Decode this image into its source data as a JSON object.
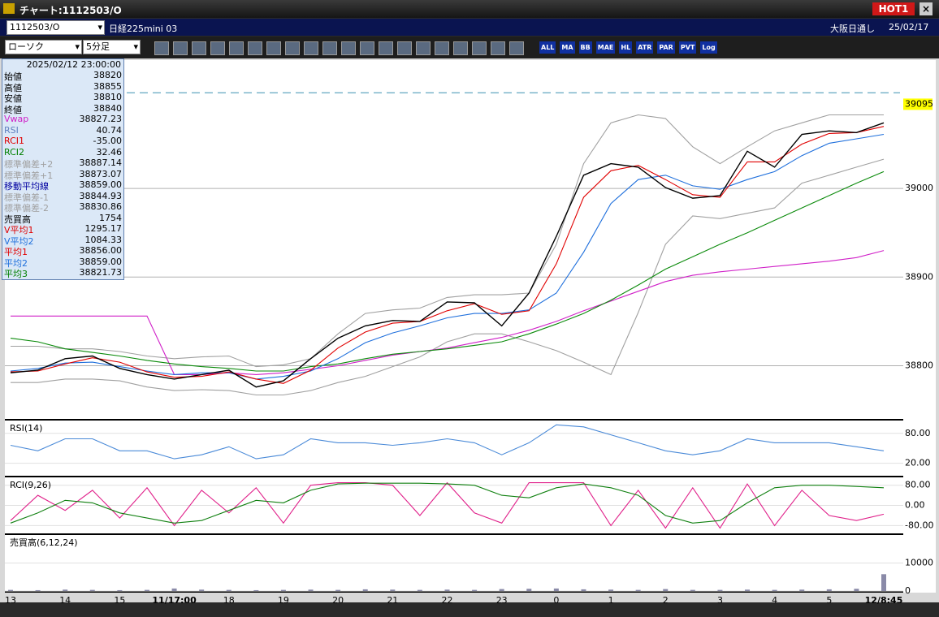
{
  "window": {
    "title": "チャート:1112503/O",
    "badge": "HOT1"
  },
  "header": {
    "symbol": "1112503/O",
    "name": "日経225mini 03",
    "session": "大阪日通し",
    "date": "25/02/17"
  },
  "toolbar": {
    "chart_style": "ローソク",
    "interval": "5分足",
    "buttons": [
      "ALL",
      "MA",
      "BB",
      "MAE",
      "HL",
      "ATR",
      "PAR",
      "PVT",
      "Log"
    ]
  },
  "info_panel": {
    "datetime": "2025/02/12 23:00:00",
    "rows": [
      {
        "label": "始値",
        "value": "38820",
        "color": "#000000"
      },
      {
        "label": "高値",
        "value": "38855",
        "color": "#000000"
      },
      {
        "label": "安値",
        "value": "38810",
        "color": "#000000"
      },
      {
        "label": "終値",
        "value": "38840",
        "color": "#000000"
      },
      {
        "label": "Vwap",
        "value": "38827.23",
        "color": "#d020c8"
      },
      {
        "label": "RSI",
        "value": "40.74",
        "color": "#6080c0"
      },
      {
        "label": "RCI1",
        "value": "-35.00",
        "color": "#e00000"
      },
      {
        "label": "RCI2",
        "value": "32.46",
        "color": "#008000"
      },
      {
        "label": "標準偏差+2",
        "value": "38887.14",
        "color": "#a0a0a0"
      },
      {
        "label": "標準偏差+1",
        "value": "38873.07",
        "color": "#a0a0a0"
      },
      {
        "label": "移動平均線",
        "value": "38859.00",
        "color": "#0000a0"
      },
      {
        "label": "標準偏差-1",
        "value": "38844.93",
        "color": "#a0a0a0"
      },
      {
        "label": "標準偏差-2",
        "value": "38830.86",
        "color": "#a0a0a0"
      },
      {
        "label": "売買高",
        "value": "1754",
        "color": "#000000"
      },
      {
        "label": "V平均1",
        "value": "1295.17",
        "color": "#e00000"
      },
      {
        "label": "V平均2",
        "value": "1084.33",
        "color": "#1e6fdc"
      },
      {
        "label": "平均1",
        "value": "38856.00",
        "color": "#e00000"
      },
      {
        "label": "平均2",
        "value": "38859.00",
        "color": "#1e6fdc"
      },
      {
        "label": "平均3",
        "value": "38821.73",
        "color": "#008000"
      }
    ]
  },
  "chart_data": [
    {
      "type": "line",
      "categories": [
        "13",
        null,
        "14",
        null,
        "15",
        null,
        "11/17:00",
        null,
        "18",
        null,
        "19",
        null,
        "20",
        null,
        "21",
        null,
        "22",
        null,
        "23",
        null,
        "0",
        null,
        "1",
        null,
        "2",
        null,
        "3",
        null,
        "4",
        null,
        "5",
        null,
        "12/8:45"
      ],
      "ylim": [
        38740,
        39143
      ],
      "yticks": [
        38800,
        38900,
        39000
      ],
      "grid": true,
      "reference_line": 39108,
      "last_price": 39095,
      "series": [
        {
          "color": "#a0a0a0",
          "values": [
            38822,
            38822,
            38819,
            38819,
            38816,
            38811,
            38808,
            38810,
            38811,
            38799,
            38801,
            38808,
            38836,
            38859,
            38863,
            38865,
            38877,
            38880,
            38880,
            38882,
            38937,
            39028,
            39074,
            39083,
            39079,
            39047,
            39028,
            39047,
            39065,
            39074,
            39083,
            39083,
            39083
          ]
        },
        {
          "color": "#a0a0a0",
          "values": [
            38781,
            38781,
            38785,
            38785,
            38783,
            38776,
            38772,
            38773,
            38772,
            38767,
            38767,
            38772,
            38781,
            38788,
            38799,
            38810,
            38827,
            38836,
            38836,
            38827,
            38817,
            38804,
            38790,
            38860,
            38937,
            38969,
            38966,
            38972,
            38978,
            39006,
            39015,
            39024,
            39033
          ]
        },
        {
          "color": "#d020c8",
          "values": [
            38856,
            38856,
            38856,
            38856,
            38856,
            38856,
            38790,
            38790,
            38792,
            38790,
            38792,
            38796,
            38800,
            38806,
            38812,
            38816,
            38820,
            38826,
            38832,
            38840,
            38850,
            38862,
            38873,
            38884,
            38895,
            38902,
            38906,
            38909,
            38912,
            38915,
            38918,
            38922,
            38930
          ]
        },
        {
          "color": "#0a8a0a",
          "values": [
            38831,
            38827,
            38819,
            38815,
            38811,
            38806,
            38802,
            38799,
            38797,
            38794,
            38794,
            38799,
            38802,
            38808,
            38813,
            38816,
            38819,
            38823,
            38827,
            38836,
            38847,
            38859,
            38874,
            38891,
            38909,
            38923,
            38937,
            38950,
            38964,
            38978,
            38992,
            39006,
            39019
          ]
        },
        {
          "color": "#1e6fdc",
          "values": [
            38794,
            38797,
            38803,
            38804,
            38799,
            38794,
            38790,
            38792,
            38792,
            38785,
            38788,
            38794,
            38808,
            38826,
            38837,
            38845,
            38854,
            38859,
            38859,
            38863,
            38882,
            38928,
            38983,
            39010,
            39015,
            39003,
            38999,
            39010,
            39019,
            39037,
            39051,
            39056,
            39061
          ]
        },
        {
          "color": "#e00000",
          "values": [
            38793,
            38794,
            38802,
            38809,
            38804,
            38793,
            38787,
            38788,
            38793,
            38785,
            38780,
            38795,
            38820,
            38838,
            38848,
            38850,
            38862,
            38870,
            38858,
            38862,
            38915,
            38990,
            39020,
            39026,
            39010,
            38993,
            38990,
            39030,
            39030,
            39050,
            39062,
            39063,
            39070
          ]
        },
        {
          "color": "#000000",
          "values": [
            38792,
            38795,
            38808,
            38811,
            38797,
            38790,
            38785,
            38790,
            38795,
            38776,
            38783,
            38808,
            38831,
            38845,
            38851,
            38850,
            38872,
            38871,
            38845,
            38882,
            38946,
            39015,
            39028,
            39024,
            39001,
            38989,
            38992,
            39042,
            39024,
            39061,
            39065,
            39063,
            39074
          ]
        }
      ]
    },
    {
      "type": "line",
      "title": "RSI(14)",
      "ylim": [
        -5,
        104
      ],
      "yticks": [
        {
          "value": 80,
          "label": "80.00"
        },
        {
          "value": 20,
          "label": "20.00"
        }
      ],
      "series": [
        {
          "color": "#4a8ad8",
          "values": [
            56,
            45,
            69,
            69,
            45,
            45,
            29,
            37,
            53,
            29,
            37,
            69,
            61,
            61,
            56,
            61,
            69,
            61,
            37,
            61,
            97,
            93,
            77,
            61,
            45,
            37,
            45,
            69,
            61,
            61,
            61,
            53,
            45
          ]
        }
      ]
    },
    {
      "type": "line",
      "title": "RCI(9,26)",
      "ylim": [
        -111,
        108
      ],
      "yticks": [
        {
          "value": 80,
          "label": "80.00"
        },
        {
          "value": 0,
          "label": "0.00"
        },
        {
          "value": -80,
          "label": "-80.00"
        }
      ],
      "series": [
        {
          "color": "#e0208a",
          "values": [
            -60,
            40,
            -20,
            60,
            -50,
            70,
            -80,
            60,
            -30,
            70,
            -70,
            80,
            90,
            90,
            80,
            -40,
            90,
            -30,
            -70,
            90,
            90,
            90,
            -80,
            60,
            -90,
            70,
            -90,
            85,
            -80,
            60,
            -40,
            -60,
            -35
          ]
        },
        {
          "color": "#108010",
          "values": [
            -70,
            -30,
            20,
            10,
            -30,
            -50,
            -70,
            -60,
            -20,
            20,
            10,
            60,
            85,
            88,
            88,
            88,
            85,
            80,
            40,
            30,
            70,
            85,
            70,
            40,
            -40,
            -70,
            -60,
            10,
            70,
            80,
            80,
            75,
            70
          ]
        }
      ]
    },
    {
      "type": "bar",
      "title": "売買高(6,12,24)",
      "ylim": [
        0,
        19700
      ],
      "yticks": [
        10000,
        0
      ],
      "color": "#8a8aa8",
      "values": [
        400,
        300,
        500,
        400,
        300,
        400,
        900,
        500,
        400,
        300,
        400,
        500,
        400,
        600,
        500,
        400,
        500,
        400,
        700,
        800,
        900,
        600,
        500,
        400,
        700,
        400,
        400,
        500,
        400,
        500,
        600,
        800,
        6000
      ]
    }
  ]
}
